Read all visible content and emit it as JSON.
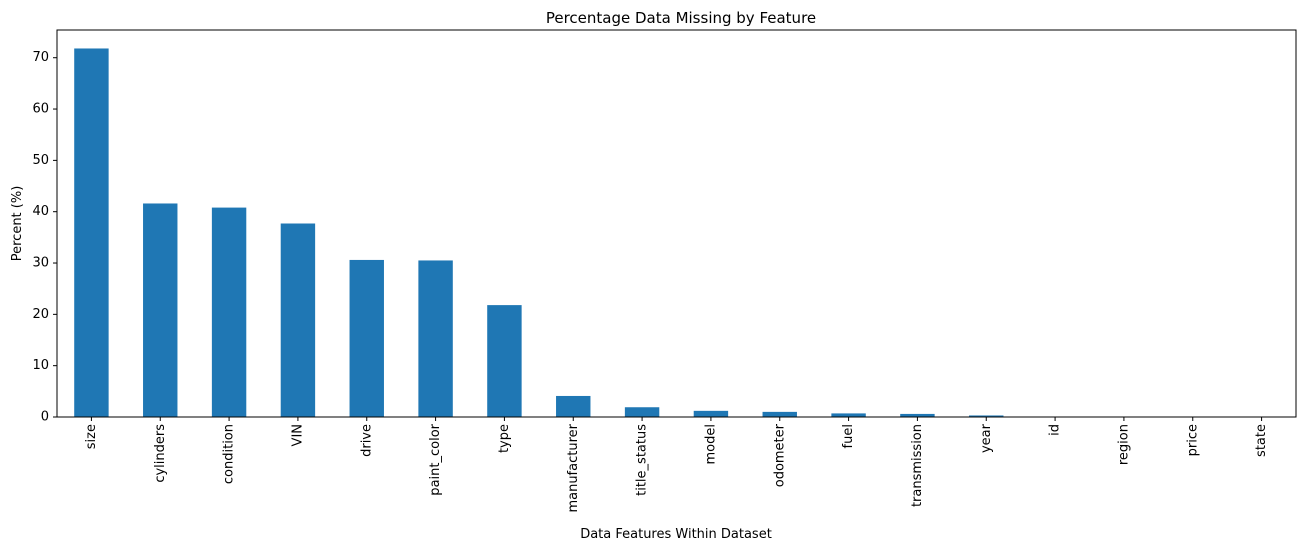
{
  "chart_data": {
    "type": "bar",
    "title": "Percentage Data Missing by Feature",
    "xlabel": "Data Features Within Dataset",
    "ylabel": "Percent (%)",
    "categories": [
      "size",
      "cylinders",
      "condition",
      "VIN",
      "drive",
      "paint_color",
      "type",
      "manufacturer",
      "title_status",
      "model",
      "odometer",
      "fuel",
      "transmission",
      "year",
      "id",
      "region",
      "price",
      "state"
    ],
    "values": [
      71.8,
      41.6,
      40.8,
      37.7,
      30.6,
      30.5,
      21.8,
      4.1,
      1.9,
      1.2,
      1.0,
      0.7,
      0.6,
      0.3,
      0.0,
      0.0,
      0.0,
      0.0
    ],
    "yticks": [
      0,
      10,
      20,
      30,
      40,
      50,
      60,
      70
    ],
    "ylim": [
      0,
      75.4
    ],
    "bar_color": "#1f77b4",
    "grid": false
  }
}
